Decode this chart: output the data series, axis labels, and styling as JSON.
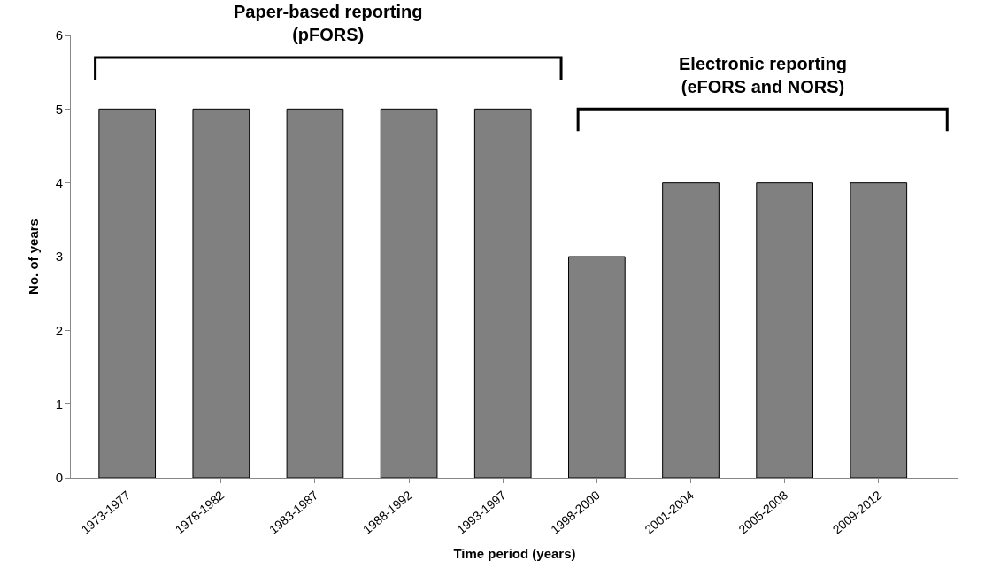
{
  "chart_data": {
    "type": "bar",
    "categories": [
      "1973-1977",
      "1978-1982",
      "1983-1987",
      "1988-1992",
      "1993-1997",
      "1998-2000",
      "2001-2004",
      "2005-2008",
      "2009-2012"
    ],
    "values": [
      5,
      5,
      5,
      5,
      5,
      3,
      4,
      4,
      4
    ],
    "color": "#808080",
    "xlabel": "Time period (years)",
    "ylabel": "No. of years",
    "ylim": [
      0,
      6
    ],
    "yticks": [
      0,
      1,
      2,
      3,
      4,
      5,
      6
    ],
    "annotations": [
      "Paper-based reporting\n(pFORS)",
      "Electronic reporting\n(eFORS and NORS)"
    ]
  }
}
